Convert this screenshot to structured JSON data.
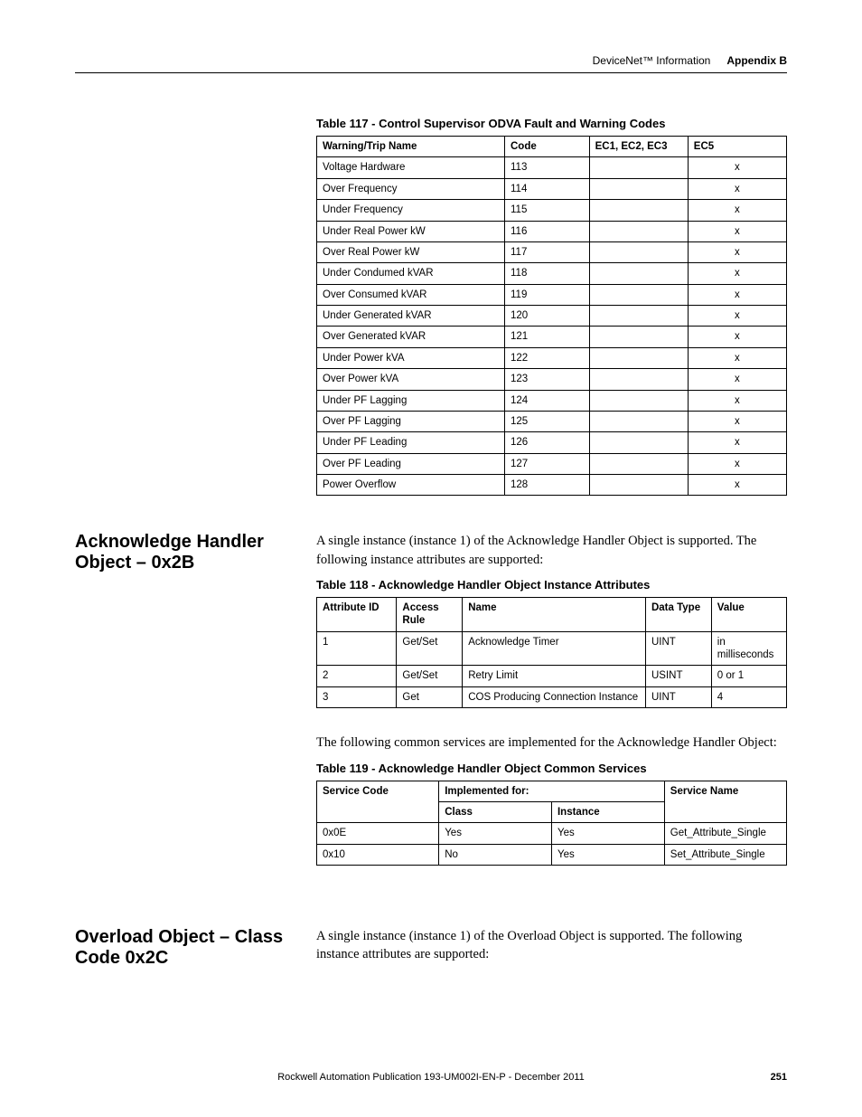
{
  "header": {
    "doc_title": "DeviceNet™ Information",
    "appendix": "Appendix B"
  },
  "table117": {
    "caption": "Table 117 - Control Supervisor ODVA Fault and Warning Codes",
    "headers": [
      "Warning/Trip Name",
      "Code",
      "EC1, EC2, EC3",
      "EC5"
    ],
    "rows": [
      {
        "name": "Voltage Hardware",
        "code": "113",
        "ec123": "",
        "ec5": "x"
      },
      {
        "name": "Over Frequency",
        "code": "114",
        "ec123": "",
        "ec5": "x"
      },
      {
        "name": "Under Frequency",
        "code": "115",
        "ec123": "",
        "ec5": "x"
      },
      {
        "name": "Under Real Power kW",
        "code": "116",
        "ec123": "",
        "ec5": "x"
      },
      {
        "name": "Over Real Power kW",
        "code": "117",
        "ec123": "",
        "ec5": "x"
      },
      {
        "name": "Under Condumed kVAR",
        "code": "118",
        "ec123": "",
        "ec5": "x"
      },
      {
        "name": "Over Consumed kVAR",
        "code": "119",
        "ec123": "",
        "ec5": "x"
      },
      {
        "name": "Under Generated kVAR",
        "code": "120",
        "ec123": "",
        "ec5": "x"
      },
      {
        "name": "Over Generated kVAR",
        "code": "121",
        "ec123": "",
        "ec5": "x"
      },
      {
        "name": "Under Power kVA",
        "code": "122",
        "ec123": "",
        "ec5": "x"
      },
      {
        "name": "Over Power kVA",
        "code": "123",
        "ec123": "",
        "ec5": "x"
      },
      {
        "name": "Under PF Lagging",
        "code": "124",
        "ec123": "",
        "ec5": "x"
      },
      {
        "name": "Over PF Lagging",
        "code": "125",
        "ec123": "",
        "ec5": "x"
      },
      {
        "name": "Under PF Leading",
        "code": "126",
        "ec123": "",
        "ec5": "x"
      },
      {
        "name": "Over PF Leading",
        "code": "127",
        "ec123": "",
        "ec5": "x"
      },
      {
        "name": "Power Overflow",
        "code": "128",
        "ec123": "",
        "ec5": "x"
      }
    ]
  },
  "section_ack": {
    "heading": "Acknowledge Handler Object – 0x2B",
    "para1": "A single instance (instance 1) of the Acknowledge Handler Object is supported. The following instance attributes are supported:",
    "para2": "The following common services are implemented for the Acknowledge Handler Object:"
  },
  "table118": {
    "caption": "Table 118 - Acknowledge Handler Object Instance Attributes",
    "headers": [
      "Attribute ID",
      "Access Rule",
      "Name",
      "Data Type",
      "Value"
    ],
    "rows": [
      {
        "id": "1",
        "rule": "Get/Set",
        "name": "Acknowledge Timer",
        "dt": "UINT",
        "val": "in milliseconds"
      },
      {
        "id": "2",
        "rule": "Get/Set",
        "name": "Retry Limit",
        "dt": "USINT",
        "val": "0 or 1"
      },
      {
        "id": "3",
        "rule": "Get",
        "name": "COS Producing Connection Instance",
        "dt": "UINT",
        "val": "4"
      }
    ]
  },
  "table119": {
    "caption": "Table 119 - Acknowledge Handler Object Common Services",
    "headers_top": {
      "svc": "Service Code",
      "impl": "Implemented for:",
      "name": "Service Name"
    },
    "headers_sub": {
      "class": "Class",
      "inst": "Instance"
    },
    "rows": [
      {
        "code": "0x0E",
        "class": "Yes",
        "inst": "Yes",
        "name": "Get_Attribute_Single"
      },
      {
        "code": "0x10",
        "class": "No",
        "inst": "Yes",
        "name": "Set_Attribute_Single"
      }
    ]
  },
  "section_overload": {
    "heading": "Overload Object – Class Code 0x2C",
    "para1": "A single instance (instance 1) of the Overload Object is supported. The following instance attributes are supported:"
  },
  "footer": {
    "pub": "Rockwell Automation Publication 193-UM002I-EN-P - December 2011",
    "page": "251"
  }
}
